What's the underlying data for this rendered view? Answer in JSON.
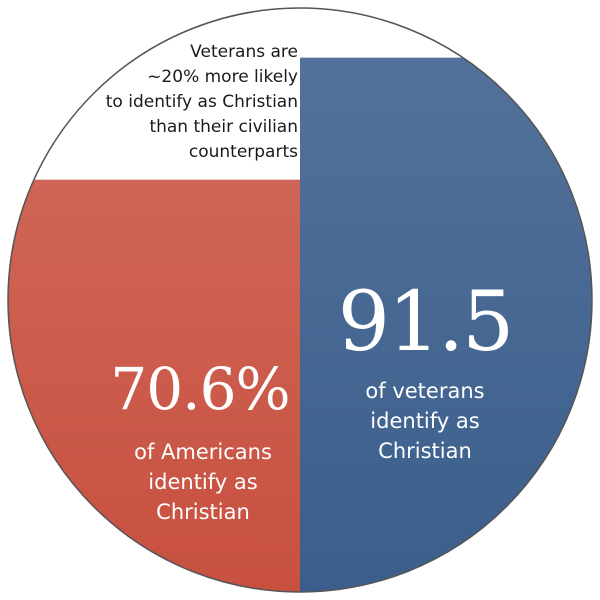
{
  "callout": {
    "line1": "Veterans are",
    "line2": "~20% more likely",
    "line3": "to identify as Christian",
    "line4": "than their civilian",
    "line5": "counterparts"
  },
  "chart_data": {
    "type": "area",
    "title": "",
    "series": [
      {
        "value": 70.6,
        "value_label": "70.6%",
        "caption": [
          "of Americans",
          "identify as",
          "Christian"
        ],
        "color": "#c8503f"
      },
      {
        "value": 91.5,
        "value_label": "91.5",
        "caption": [
          "of veterans",
          "identify as",
          "Christian"
        ],
        "color": "#3b5e8c"
      }
    ],
    "ylim": [
      0,
      100
    ],
    "grid": false,
    "legend": "none"
  },
  "colors": {
    "left_fill": "#c8503f",
    "right_fill": "#3b5e8c",
    "outline": "#555555",
    "background": "#ffffff"
  }
}
